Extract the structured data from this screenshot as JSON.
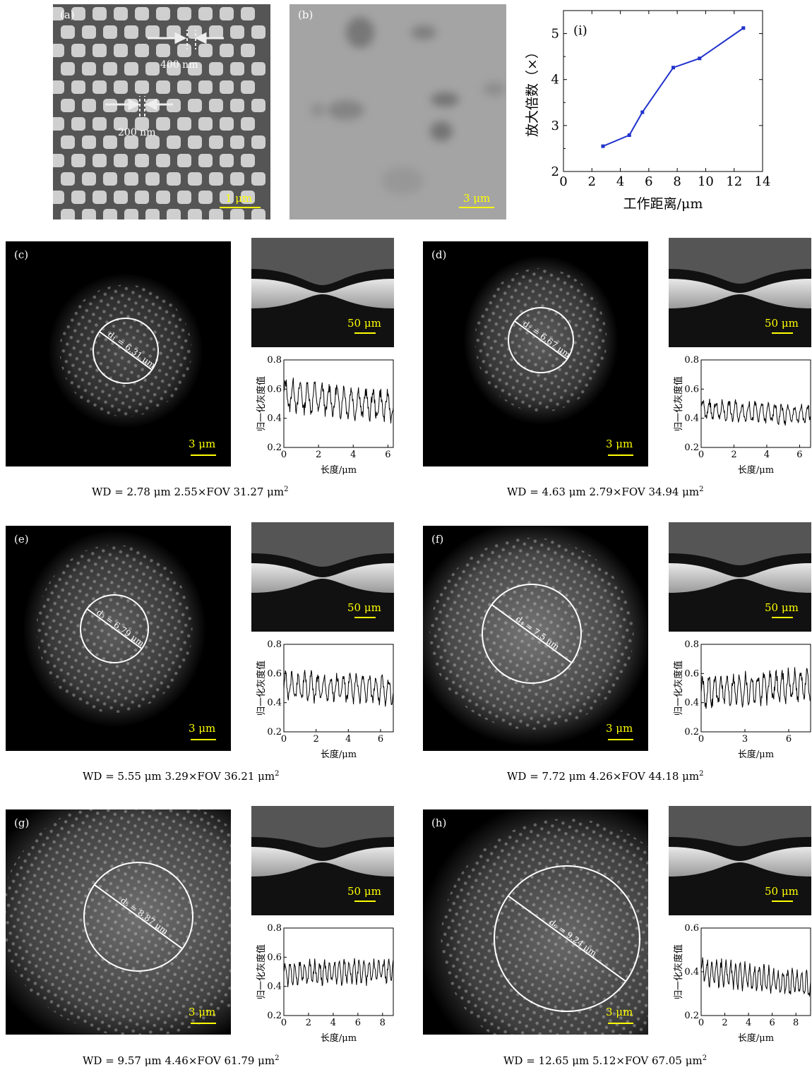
{
  "panels": {
    "a": {
      "label": "(a)",
      "ann1": "400 nm",
      "ann2": "200 nm",
      "scale": "1 μm"
    },
    "b": {
      "label": "(b)",
      "scale": "3 μm"
    },
    "c": {
      "label": "(c)",
      "circle": "d₁ = 6.31 μm",
      "scale": "3 μm",
      "inset_scale": "50 μm",
      "caption": "WD = 2.78 μm   2.55×FOV   31.27 μm",
      "cap_sup": "2"
    },
    "d": {
      "label": "(d)",
      "circle": "d₂ = 6.67 μm",
      "scale": "3 μm",
      "inset_scale": "50 μm",
      "caption": "WD = 4.63 μm   2.79×FOV   34.94 μm",
      "cap_sup": "2"
    },
    "e": {
      "label": "(e)",
      "circle": "d₃ = 6.79 μm",
      "scale": "3 μm",
      "inset_scale": "50 μm",
      "caption": "WD = 5.55 μm   3.29×FOV   36.21 μm",
      "cap_sup": "2"
    },
    "f": {
      "label": "(f)",
      "circle": "d₄ = 7.5 μm",
      "scale": "3 μm",
      "inset_scale": "50 μm",
      "caption": "WD = 7.72 μm   4.26×FOV   44.18 μm",
      "cap_sup": "2"
    },
    "g": {
      "label": "(g)",
      "circle": "d₅ = 8.87 μm",
      "scale": "3 μm",
      "inset_scale": "50 μm",
      "caption": "WD = 9.57 μm   4.46×FOV   61.79 μm",
      "cap_sup": "2"
    },
    "h": {
      "label": "(h)",
      "circle": "d₆ = 9.24 μm",
      "scale": "3 μm",
      "inset_scale": "50 μm",
      "caption": "WD = 12.65 μm   5.12×FOV   67.05 μm",
      "cap_sup": "2"
    }
  },
  "chart_data": [
    {
      "type": "line",
      "panel": "(i)",
      "xlabel": "工作距离/μm",
      "ylabel": "放大倍数（×）",
      "xlim": [
        0,
        14
      ],
      "ylim": [
        2,
        5.5
      ],
      "xticks": [
        0,
        2,
        4,
        6,
        8,
        10,
        12,
        14
      ],
      "yticks": [
        2,
        3,
        4,
        5
      ],
      "x": [
        2.78,
        4.63,
        5.55,
        7.72,
        9.57,
        12.65
      ],
      "y": [
        2.55,
        2.79,
        3.29,
        4.26,
        4.46,
        5.12
      ],
      "color": "#2233cc"
    },
    {
      "type": "line",
      "panel": "c",
      "xlabel": "长度/μm",
      "ylabel": "归一化灰度值",
      "xlim": [
        0,
        6.31
      ],
      "ylim": [
        0.2,
        0.8
      ],
      "xticks": [
        0,
        2,
        4,
        6
      ],
      "yticks": [
        0.2,
        0.4,
        0.6,
        0.8
      ],
      "mean": 0.52,
      "amp": 0.09,
      "period": 0.42,
      "trend": -0.08
    },
    {
      "type": "line",
      "panel": "d",
      "xlabel": "长度/μm",
      "ylabel": "归一化灰度值",
      "xlim": [
        0,
        6.67
      ],
      "ylim": [
        0.2,
        0.8
      ],
      "xticks": [
        0,
        2,
        4,
        6
      ],
      "yticks": [
        0.2,
        0.4,
        0.6,
        0.8
      ],
      "mean": 0.44,
      "amp": 0.06,
      "period": 0.4,
      "trend": -0.04
    },
    {
      "type": "line",
      "panel": "e",
      "xlabel": "长度/μm",
      "ylabel": "归一化灰度值",
      "xlim": [
        0,
        6.79
      ],
      "ylim": [
        0.2,
        0.8
      ],
      "xticks": [
        0,
        2,
        4,
        6
      ],
      "yticks": [
        0.2,
        0.4,
        0.6,
        0.8
      ],
      "mean": 0.5,
      "amp": 0.08,
      "period": 0.4,
      "trend": -0.03
    },
    {
      "type": "line",
      "panel": "f",
      "xlabel": "长度/μm",
      "ylabel": "归一化灰度值",
      "xlim": [
        0,
        7.5
      ],
      "ylim": [
        0.2,
        0.8
      ],
      "xticks": [
        0,
        3,
        6
      ],
      "yticks": [
        0.2,
        0.4,
        0.6,
        0.8
      ],
      "mean": 0.5,
      "amp": 0.09,
      "period": 0.42,
      "trend": 0.05
    },
    {
      "type": "line",
      "panel": "g",
      "xlabel": "长度/μm",
      "ylabel": "归一化灰度值",
      "xlim": [
        0,
        8.87
      ],
      "ylim": [
        0.2,
        0.8
      ],
      "xticks": [
        0,
        2,
        4,
        6,
        8
      ],
      "yticks": [
        0.2,
        0.4,
        0.6,
        0.8
      ],
      "mean": 0.5,
      "amp": 0.07,
      "period": 0.4,
      "trend": 0.02
    },
    {
      "type": "line",
      "panel": "h",
      "xlabel": "长度/μm",
      "ylabel": "归一化灰度值",
      "xlim": [
        0,
        9.24
      ],
      "ylim": [
        0.2,
        0.6
      ],
      "xticks": [
        0,
        2,
        4,
        6,
        8
      ],
      "yticks": [
        0.2,
        0.4,
        0.6
      ],
      "mean": 0.37,
      "amp": 0.05,
      "period": 0.4,
      "trend": -0.07
    }
  ]
}
